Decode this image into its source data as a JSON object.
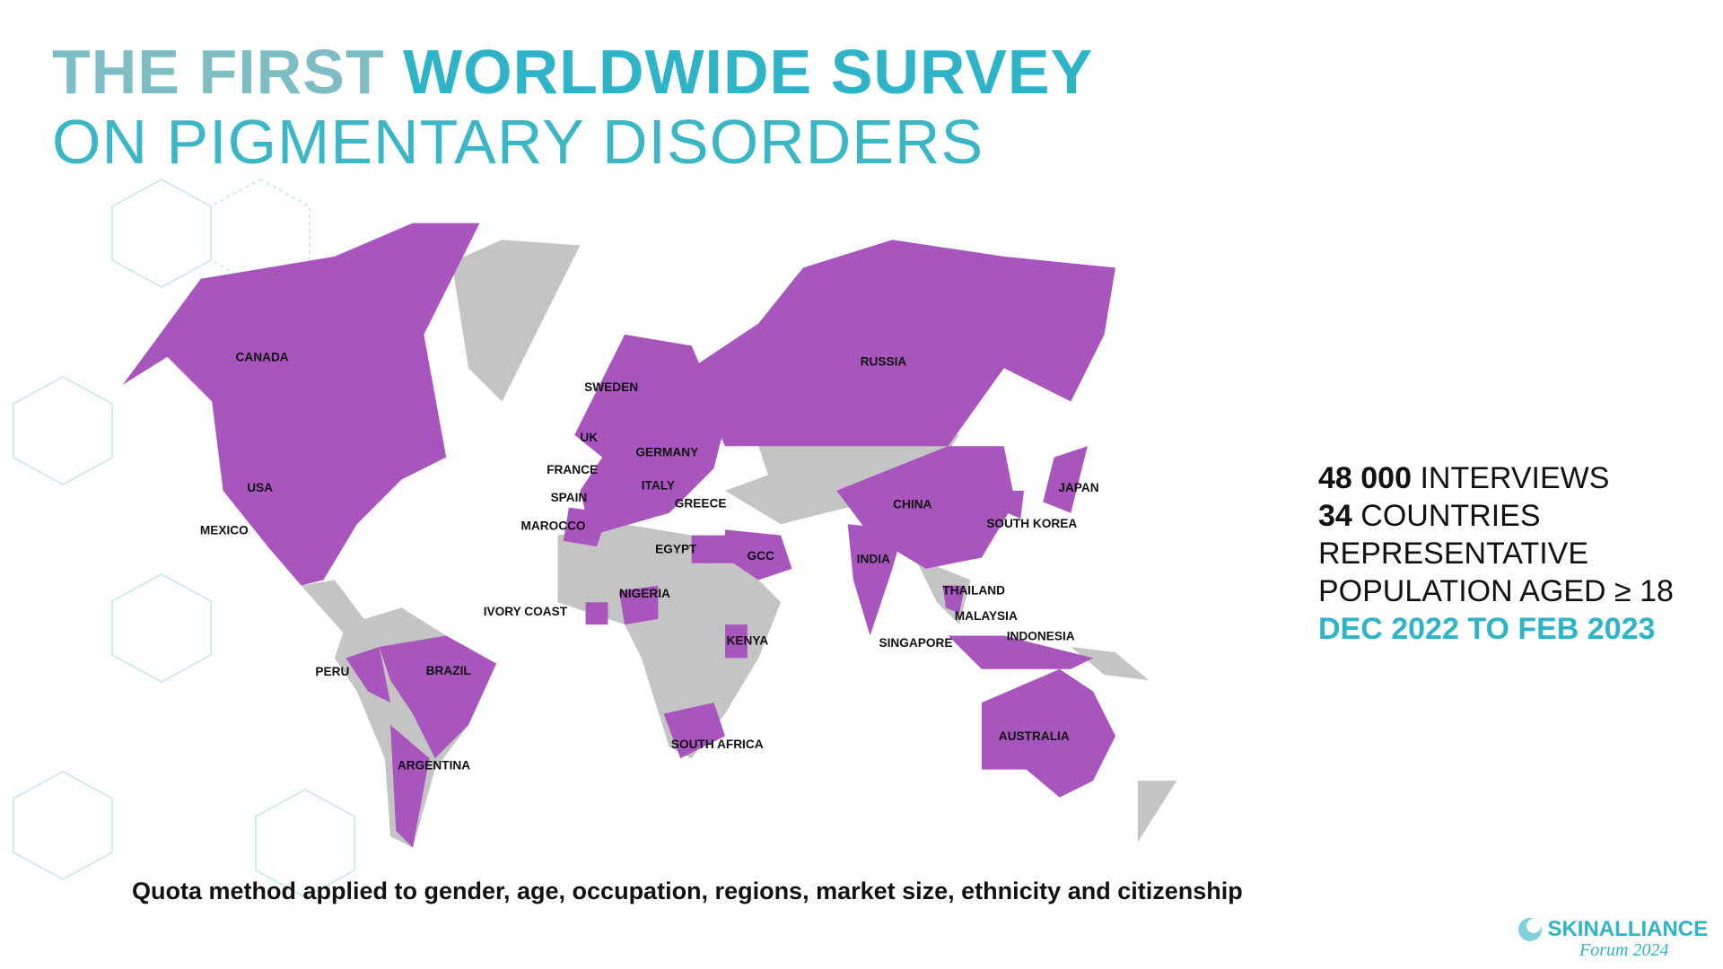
{
  "header": {
    "title_bold": [
      "THE FIRST",
      "WORLDWIDE SURVEY"
    ],
    "title_light": "ON PIGMENTARY DISORDERS"
  },
  "map": {
    "countries": [
      "CANADA",
      "USA",
      "MEXICO",
      "PERU",
      "BRAZIL",
      "ARGENTINA",
      "SWEDEN",
      "UK",
      "GERMANY",
      "FRANCE",
      "ITALY",
      "SPAIN",
      "GREECE",
      "MAROCCO",
      "EGYPT",
      "GCC",
      "IVORY COAST",
      "NIGERIA",
      "KENYA",
      "SOUTH AFRICA",
      "RUSSIA",
      "CHINA",
      "INDIA",
      "JAPAN",
      "SOUTH KOREA",
      "THAILAND",
      "MALAYSIA",
      "SINGAPORE",
      "INDONESIA",
      "AUSTRALIA"
    ]
  },
  "stats": {
    "interviews": {
      "number": "48 000",
      "label": "INTERVIEWS"
    },
    "countries": {
      "number": "34",
      "label": "COUNTRIES"
    },
    "line3": "REPRESENTATIVE",
    "line4": "POPULATION AGED ≥ 18",
    "period": "DEC 2022 TO FEB 2023"
  },
  "footnote": "Quota method applied to gender, age, occupation, regions, market size, ethnicity and citizenship",
  "logo": {
    "name": "SKINALLIANCE",
    "subtitle": "Forum 2024"
  }
}
